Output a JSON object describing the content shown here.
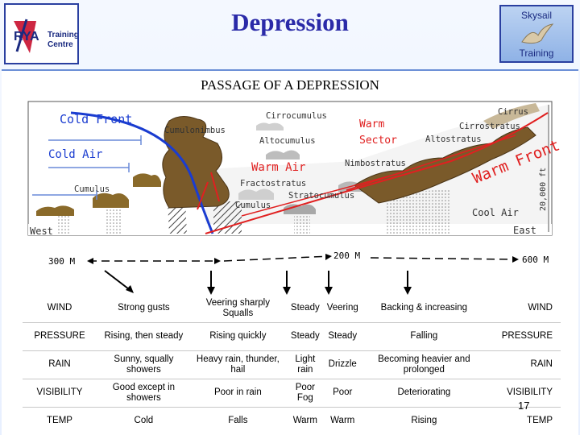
{
  "header": {
    "title": "Depression",
    "logo_left_lines": [
      "Training",
      "Centre"
    ],
    "logo_left_brand": "RYA",
    "logo_right_top": "Skysail",
    "logo_right_bottom": "Training"
  },
  "diagram": {
    "title": "PASSAGE OF A DEPRESSION",
    "labels": {
      "cold_front": "Cold Front",
      "cold_air": "Cold Air",
      "cumulus_left": "Cumulus",
      "cumulonimbus": "Cumulonimbus",
      "cirrocumulus": "Cirrocumulus",
      "altocumulus": "Altocumulus",
      "warm_sector": "Warm Sector",
      "warm_air": "Warm Air",
      "nimbostratus": "Nimbostratus",
      "fractostratus": "Fractostratus",
      "stratocumulus": "Stratocumulus",
      "cumulus_mid": "Cumulus",
      "cirrus": "Cirrus",
      "cirrostratus": "Cirrostratus",
      "altostratus": "Altostratus",
      "warm_front": "Warm Front",
      "height": "20,000 ft",
      "cool_air": "Cool Air",
      "east": "East",
      "west": "West"
    },
    "distances": {
      "left": "300 M",
      "middle": "200 M",
      "right": "600 M"
    }
  },
  "table": {
    "rows": [
      {
        "label": "WIND",
        "cells": [
          "Strong gusts",
          "Veering sharply Squalls",
          "Steady",
          "Veering",
          "Backing & increasing"
        ],
        "rlabel": "WIND"
      },
      {
        "label": "PRESSURE",
        "cells": [
          "Rising, then steady",
          "Rising quickly",
          "Steady",
          "Steady",
          "Falling"
        ],
        "rlabel": "PRESSURE"
      },
      {
        "label": "RAIN",
        "cells": [
          "Sunny, squally showers",
          "Heavy rain, thunder, hail",
          "Light rain",
          "Drizzle",
          "Becoming heavier and prolonged"
        ],
        "rlabel": "RAIN"
      },
      {
        "label": "VISIBILITY",
        "cells": [
          "Good except in showers",
          "Poor in rain",
          "Poor Fog",
          "Poor",
          "Deteriorating"
        ],
        "rlabel": "VISIBILITY"
      },
      {
        "label": "TEMP",
        "cells": [
          "Cold",
          "Falls",
          "Warm",
          "Warm",
          "Rising"
        ],
        "rlabel": "TEMP"
      }
    ]
  },
  "page_number": "17",
  "colors": {
    "title": "#2a2aa8",
    "front": "#e02020",
    "cold_front_line": "#1a3cd0",
    "arrow": "#6a8ad8",
    "ground": "#8a6a2a"
  }
}
